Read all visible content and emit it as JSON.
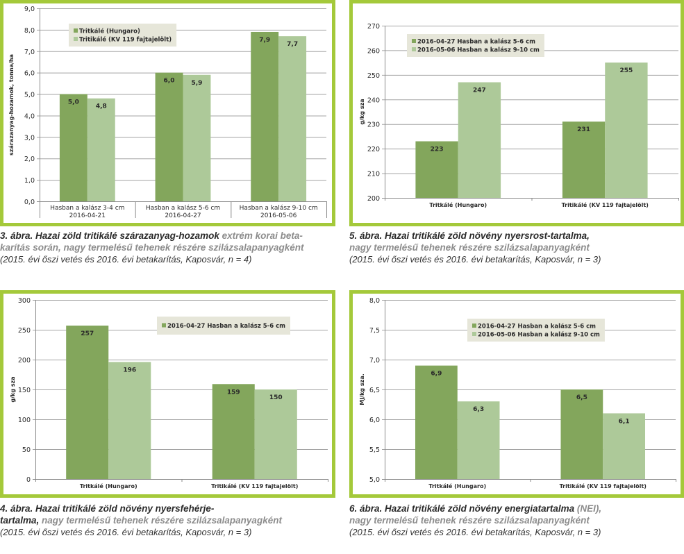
{
  "colors": {
    "frame": "#a4c93a",
    "series_dark": "#83a65c",
    "series_light": "#adc999",
    "legend_bg": "#e6e6d9",
    "grid": "#a3a3a3"
  },
  "chart_data": [
    {
      "id": "fig3",
      "type": "bar",
      "ylabel": "szárazanyag-hozamok, tonna/ha",
      "ylim": [
        0,
        9
      ],
      "yticks": [
        "0,0",
        "1,0",
        "2,0",
        "3,0",
        "4,0",
        "5,0",
        "6,0",
        "7,0",
        "8,0",
        "9,0"
      ],
      "ytick_values": [
        0,
        1,
        2,
        3,
        4,
        5,
        6,
        7,
        8,
        9
      ],
      "categories": [
        [
          "Hasban a kalász 3-4 cm",
          "2016-04-21"
        ],
        [
          "Hasban a kalász 5-6 cm",
          "2016-04-27"
        ],
        [
          "Hasban a kalász 9-10 cm",
          "2016-05-06"
        ]
      ],
      "series": [
        {
          "name": "Tritkálé (Hungaro)",
          "values": [
            5.0,
            6.0,
            7.9
          ],
          "labels": [
            "5,0",
            "6,0",
            "7,9"
          ]
        },
        {
          "name": "Tritikálé (KV 119 fajtajelölt)",
          "values": [
            4.8,
            5.9,
            7.7
          ],
          "labels": [
            "4,8",
            "5,9",
            "7,7"
          ]
        }
      ],
      "legend": "top-left",
      "grid": true
    },
    {
      "id": "fig5",
      "type": "bar",
      "ylabel": "g/kg sza",
      "ylim": [
        200,
        270
      ],
      "yticks": [
        "200",
        "210",
        "220",
        "230",
        "240",
        "250",
        "260",
        "270"
      ],
      "ytick_values": [
        200,
        210,
        220,
        230,
        240,
        250,
        260,
        270
      ],
      "categories": [
        [
          "Tritkálé (Hungaro)"
        ],
        [
          "Tritikálé (KV 119 fajtajelölt)"
        ]
      ],
      "series": [
        {
          "name": "2016-04-27 Hasban a kalász 5-6 cm",
          "values": [
            223,
            231
          ],
          "labels": [
            "223",
            "231"
          ]
        },
        {
          "name": "2016-05-06 Hasban a kalász 9-10 cm",
          "values": [
            247,
            255
          ],
          "labels": [
            "247",
            "255"
          ]
        }
      ],
      "legend": "top-left",
      "grid": true
    },
    {
      "id": "fig4",
      "type": "bar",
      "ylabel": "g/kg sza",
      "ylim": [
        0,
        300
      ],
      "yticks": [
        "0",
        "50",
        "100",
        "150",
        "200",
        "250",
        "300"
      ],
      "ytick_values": [
        0,
        50,
        100,
        150,
        200,
        250,
        300
      ],
      "categories": [
        [
          "Tritkálé (Hungaro)"
        ],
        [
          "Tritikálé (KV 119 fajtajelölt)"
        ]
      ],
      "series": [
        {
          "name": "2016-04-27 Hasban a kalász 5-6 cm",
          "values": [
            257,
            159
          ],
          "labels": [
            "257",
            "159"
          ]
        },
        {
          "values": [
            196,
            150
          ],
          "labels": [
            "196",
            "150"
          ]
        }
      ],
      "legend": "top-right",
      "grid": true
    },
    {
      "id": "fig6",
      "type": "bar",
      "ylabel": "MJ/kg sza.",
      "ylim": [
        5,
        8
      ],
      "yticks": [
        "5,0",
        "5,5",
        "6,0",
        "6,5",
        "7,0",
        "7,5",
        "8,0"
      ],
      "ytick_values": [
        5,
        5.5,
        6,
        6.5,
        7,
        7.5,
        8
      ],
      "categories": [
        [
          "Tritkálé (Hungaro)"
        ],
        [
          "Tritikálé (KV 119 fajtajelölt)"
        ]
      ],
      "series": [
        {
          "name": "2016-04-27 Hasban a kalász 5-6 cm",
          "values": [
            6.9,
            6.5
          ],
          "labels": [
            "6,9",
            "6,5"
          ]
        },
        {
          "name": "2016-05-06 Hasban a kalász 9-10 cm",
          "values": [
            6.3,
            6.1
          ],
          "labels": [
            "6,3",
            "6,1"
          ]
        }
      ],
      "legend": "top-center",
      "grid": true
    }
  ],
  "captions": {
    "fig3": {
      "bold": "3. ábra. Hazai zöld tritikálé szárazanyag-hozamok",
      "gray1": " extrém korai beta-",
      "gray2": "karítás során, nagy termelésű tehenek részére szilázsalapanyagként",
      "note": "(2015. évi őszi vetés és 2016. évi betakarítás, Kaposvár, n = 4)"
    },
    "fig5": {
      "bold": "5. ábra. Hazai tritikálé zöld növény nyersrost-tartalma,",
      "gray": "nagy termelésű tehenek részére szilázsalapanyagként",
      "note": "(2015. évi őszi vetés és 2016. évi betakarítás, Kaposvár, n = 3)"
    },
    "fig4": {
      "bold1": "4. ábra. Hazai tritikálé zöld növény nyersfehérje-",
      "bold2": "tartalma,",
      "gray": " nagy termelésű tehenek részére szilázsalapanyagként",
      "note": "(2015. évi őszi vetés és 2016. évi betakarítás, Kaposvár, n = 3)"
    },
    "fig6": {
      "bold": "6. ábra. Hazai tritikálé zöld növény energiatartalma",
      "gray1": " (NEI),",
      "gray2": "nagy termelésű tehenek részére szilázsalapanyagként",
      "note": "(2015. évi őszi vetés és 2016. évi betakarítás, Kaposvár, n = 3)"
    }
  }
}
